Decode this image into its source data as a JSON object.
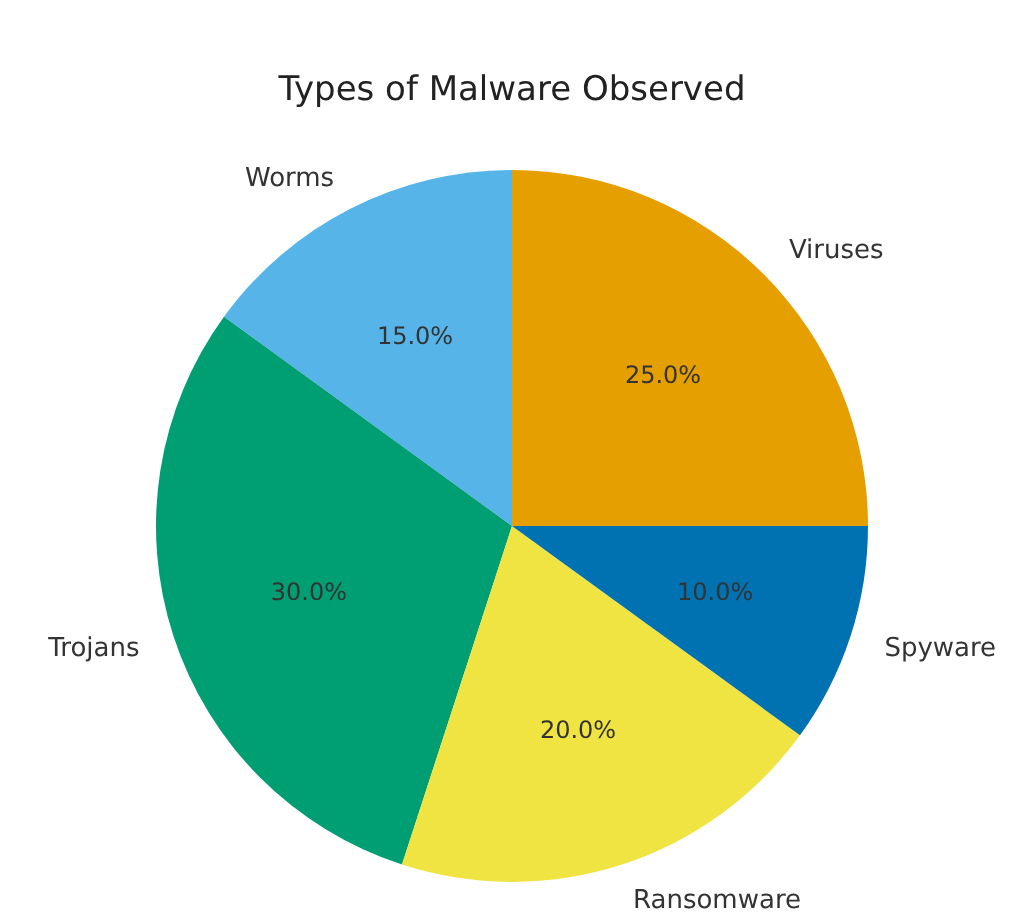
{
  "chart_data": {
    "type": "pie",
    "title": "Types of Malware Observed",
    "categories": [
      "Viruses",
      "Worms",
      "Trojans",
      "Ransomware",
      "Spyware"
    ],
    "values": [
      25,
      15,
      30,
      20,
      10
    ],
    "colors": [
      "#e69f00",
      "#56b4e9",
      "#009e73",
      "#f0e442",
      "#0072b2"
    ],
    "value_labels": [
      "25.0%",
      "15.0%",
      "30.0%",
      "20.0%",
      "10.0%"
    ]
  }
}
